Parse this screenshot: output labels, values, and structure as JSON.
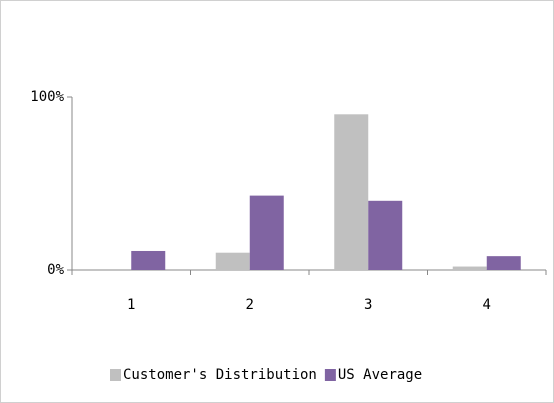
{
  "chart_data": {
    "type": "bar",
    "categories": [
      "1",
      "2",
      "3",
      "4"
    ],
    "series": [
      {
        "name": "Customer's Distribution",
        "color": "#c0c0c0",
        "values": [
          0,
          10,
          90,
          2
        ]
      },
      {
        "name": "US Average",
        "color": "#8064a2",
        "values": [
          11,
          43,
          40,
          8
        ]
      }
    ],
    "ylim": [
      0,
      100
    ],
    "yticks": [
      {
        "value": 0,
        "label": "0%"
      },
      {
        "value": 100,
        "label": "100%"
      }
    ],
    "grid": false,
    "legend": "bottom"
  }
}
